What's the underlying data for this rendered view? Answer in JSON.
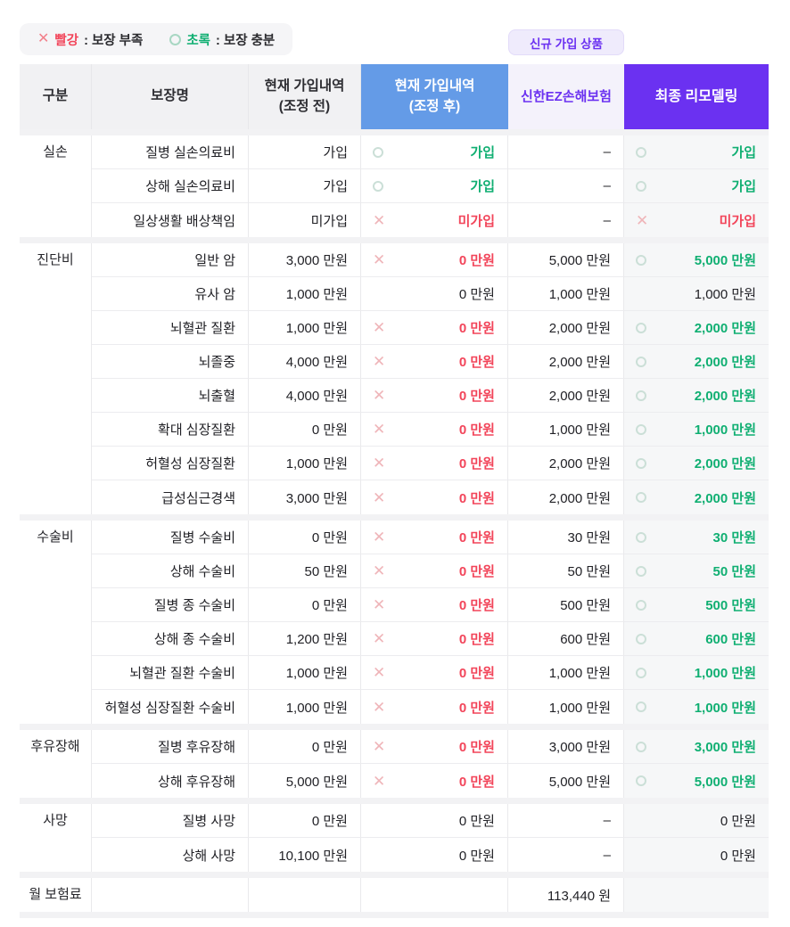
{
  "legend": {
    "red_icon": "✕",
    "red_label": "빨강",
    "red_desc": ": 보장 부족",
    "green_label": "초록",
    "green_desc": ": 보장 충분"
  },
  "badge": "신규 가입 상품",
  "header": {
    "category": "구분",
    "coverage": "보장명",
    "before_line1": "현재 가입내역",
    "before_line2": "(조정 전)",
    "after_line1": "현재 가입내역",
    "after_line2": "(조정 후)",
    "shinhan": "신한EZ손해보험",
    "final": "최종 리모델링"
  },
  "colors": {
    "header_blue": "#649BE7",
    "header_purple": "#6B31F1",
    "accent_purple": "#6B31F1",
    "green": "#10AF72",
    "red": "#F2455A",
    "final_col_bg": "#F6F7F8",
    "header_gray": "#F1F1F3"
  },
  "sections": [
    {
      "category": "실손",
      "rows": [
        {
          "name": "질병 실손의료비",
          "before": "가입",
          "after_icon": "circle",
          "after_text": "가입",
          "after_color": "green",
          "shinhan": "–",
          "final_icon": "circle",
          "final_text": "가입",
          "final_color": "green"
        },
        {
          "name": "상해 실손의료비",
          "before": "가입",
          "after_icon": "circle",
          "after_text": "가입",
          "after_color": "green",
          "shinhan": "–",
          "final_icon": "circle",
          "final_text": "가입",
          "final_color": "green"
        },
        {
          "name": "일상생활 배상책임",
          "before": "미가입",
          "after_icon": "x",
          "after_text": "미가입",
          "after_color": "red",
          "shinhan": "–",
          "final_icon": "x",
          "final_text": "미가입",
          "final_color": "red"
        }
      ]
    },
    {
      "category": "진단비",
      "rows": [
        {
          "name": "일반 암",
          "before": "3,000 만원",
          "after_icon": "x",
          "after_text": "0 만원",
          "after_color": "red",
          "shinhan": "5,000 만원",
          "final_icon": "circle",
          "final_text": "5,000 만원",
          "final_color": "green"
        },
        {
          "name": "유사 암",
          "before": "1,000 만원",
          "after_icon": "none",
          "after_text": "0 만원",
          "after_color": "black",
          "shinhan": "1,000 만원",
          "final_icon": "none",
          "final_text": "1,000 만원",
          "final_color": "black"
        },
        {
          "name": "뇌혈관 질환",
          "before": "1,000 만원",
          "after_icon": "x",
          "after_text": "0 만원",
          "after_color": "red",
          "shinhan": "2,000 만원",
          "final_icon": "circle",
          "final_text": "2,000 만원",
          "final_color": "green"
        },
        {
          "name": "뇌졸중",
          "before": "4,000 만원",
          "after_icon": "x",
          "after_text": "0 만원",
          "after_color": "red",
          "shinhan": "2,000 만원",
          "final_icon": "circle",
          "final_text": "2,000 만원",
          "final_color": "green"
        },
        {
          "name": "뇌출혈",
          "before": "4,000 만원",
          "after_icon": "x",
          "after_text": "0 만원",
          "after_color": "red",
          "shinhan": "2,000 만원",
          "final_icon": "circle",
          "final_text": "2,000 만원",
          "final_color": "green"
        },
        {
          "name": "확대 심장질환",
          "before": "0 만원",
          "after_icon": "x",
          "after_text": "0 만원",
          "after_color": "red",
          "shinhan": "1,000 만원",
          "final_icon": "circle",
          "final_text": "1,000 만원",
          "final_color": "green"
        },
        {
          "name": "허혈성 심장질환",
          "before": "1,000 만원",
          "after_icon": "x",
          "after_text": "0 만원",
          "after_color": "red",
          "shinhan": "2,000 만원",
          "final_icon": "circle",
          "final_text": "2,000 만원",
          "final_color": "green"
        },
        {
          "name": "급성심근경색",
          "before": "3,000 만원",
          "after_icon": "x",
          "after_text": "0 만원",
          "after_color": "red",
          "shinhan": "2,000 만원",
          "final_icon": "circle",
          "final_text": "2,000 만원",
          "final_color": "green"
        }
      ]
    },
    {
      "category": "수술비",
      "rows": [
        {
          "name": "질병 수술비",
          "before": "0 만원",
          "after_icon": "x",
          "after_text": "0 만원",
          "after_color": "red",
          "shinhan": "30 만원",
          "final_icon": "circle",
          "final_text": "30 만원",
          "final_color": "green"
        },
        {
          "name": "상해 수술비",
          "before": "50 만원",
          "after_icon": "x",
          "after_text": "0 만원",
          "after_color": "red",
          "shinhan": "50 만원",
          "final_icon": "circle",
          "final_text": "50 만원",
          "final_color": "green"
        },
        {
          "name": "질병 종 수술비",
          "before": "0 만원",
          "after_icon": "x",
          "after_text": "0 만원",
          "after_color": "red",
          "shinhan": "500 만원",
          "final_icon": "circle",
          "final_text": "500 만원",
          "final_color": "green"
        },
        {
          "name": "상해 종 수술비",
          "before": "1,200 만원",
          "after_icon": "x",
          "after_text": "0 만원",
          "after_color": "red",
          "shinhan": "600 만원",
          "final_icon": "circle",
          "final_text": "600 만원",
          "final_color": "green"
        },
        {
          "name": "뇌혈관 질환 수술비",
          "before": "1,000 만원",
          "after_icon": "x",
          "after_text": "0 만원",
          "after_color": "red",
          "shinhan": "1,000 만원",
          "final_icon": "circle",
          "final_text": "1,000 만원",
          "final_color": "green"
        },
        {
          "name": "허혈성 심장질환 수술비",
          "before": "1,000 만원",
          "after_icon": "x",
          "after_text": "0 만원",
          "after_color": "red",
          "shinhan": "1,000 만원",
          "final_icon": "circle",
          "final_text": "1,000 만원",
          "final_color": "green"
        }
      ]
    },
    {
      "category": "후유장해",
      "rows": [
        {
          "name": "질병 후유장해",
          "before": "0 만원",
          "after_icon": "x",
          "after_text": "0 만원",
          "after_color": "red",
          "shinhan": "3,000 만원",
          "final_icon": "circle",
          "final_text": "3,000 만원",
          "final_color": "green"
        },
        {
          "name": "상해 후유장해",
          "before": "5,000 만원",
          "after_icon": "x",
          "after_text": "0 만원",
          "after_color": "red",
          "shinhan": "5,000 만원",
          "final_icon": "circle",
          "final_text": "5,000 만원",
          "final_color": "green"
        }
      ]
    },
    {
      "category": "사망",
      "rows": [
        {
          "name": "질병 사망",
          "before": "0 만원",
          "after_icon": "none",
          "after_text": "0 만원",
          "after_color": "black",
          "shinhan": "–",
          "final_icon": "none",
          "final_text": "0 만원",
          "final_color": "black"
        },
        {
          "name": "상해 사망",
          "before": "10,100 만원",
          "after_icon": "none",
          "after_text": "0 만원",
          "after_color": "black",
          "shinhan": "–",
          "final_icon": "none",
          "final_text": "0 만원",
          "final_color": "black"
        }
      ]
    }
  ],
  "premium": {
    "label": "월 보험료",
    "coverage": "",
    "before": "",
    "after": "",
    "shinhan": "113,440 원",
    "final": ""
  }
}
